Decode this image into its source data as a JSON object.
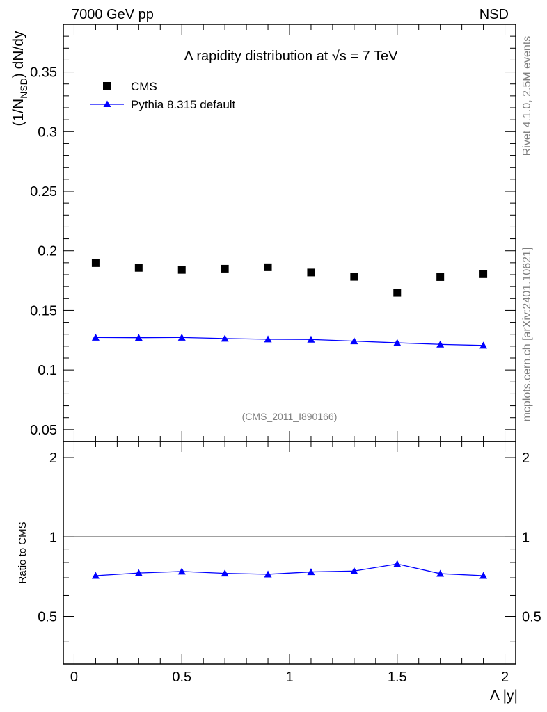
{
  "header": {
    "left": "7000 GeV pp",
    "right": "NSD"
  },
  "side_labels": {
    "rivet": "Rivet 4.1.0,  2.5M events",
    "mcplots": "mcplots.cern.ch [arXiv:2401.10621]"
  },
  "colors": {
    "data": "#000000",
    "mc": "#0000ff",
    "grey": "#7f7f7f"
  },
  "chart_data": [
    {
      "type": "scatter",
      "panel": "main",
      "title": "Λ rapidity distribution at √s = 7 TeV",
      "analysis_tag": "(CMS_2011_I890166)",
      "ylabel": "(1/N_NSD) dN/dy",
      "xlabel": "",
      "xlim": [
        -0.05,
        2.05
      ],
      "ylim": [
        0.04,
        0.39
      ],
      "ytick_values": [
        0.05,
        0.1,
        0.15,
        0.2,
        0.25,
        0.3,
        0.35
      ],
      "ytick_labels": [
        "0.05",
        "0.1",
        "0.15",
        "0.2",
        "0.25",
        "0.3",
        "0.35"
      ],
      "legend_position": "top-left",
      "series": [
        {
          "name": "CMS",
          "marker": "square",
          "color": "#000000",
          "x": [
            0.1,
            0.3,
            0.5,
            0.7,
            0.9,
            1.1,
            1.3,
            1.5,
            1.7,
            1.9
          ],
          "values": [
            0.1897,
            0.1857,
            0.184,
            0.185,
            0.1862,
            0.1818,
            0.1782,
            0.1648,
            0.178,
            0.1804
          ]
        },
        {
          "name": "Pythia 8.315 default",
          "marker": "triangle",
          "line": true,
          "color": "#0000ff",
          "x": [
            0.1,
            0.3,
            0.5,
            0.7,
            0.9,
            1.1,
            1.3,
            1.5,
            1.7,
            1.9
          ],
          "values": [
            0.1273,
            0.1271,
            0.1273,
            0.1264,
            0.1258,
            0.1256,
            0.1242,
            0.1228,
            0.1215,
            0.1206
          ]
        }
      ]
    },
    {
      "type": "line",
      "panel": "ratio",
      "ylabel": "Ratio to CMS",
      "xlabel": "Λ |y|",
      "xlim": [
        -0.05,
        2.05
      ],
      "ylim": [
        0.33,
        2.3
      ],
      "reference_line": 1,
      "ytick_values": [
        0.5,
        1,
        2
      ],
      "ytick_labels": [
        "0.5",
        "1",
        "2"
      ],
      "xtick_values": [
        0,
        0.5,
        1,
        1.5,
        2
      ],
      "xtick_labels": [
        "0",
        "0.5",
        "1",
        "1.5",
        "2"
      ],
      "series": [
        {
          "name": "Pythia 8.315 default",
          "marker": "triangle",
          "color": "#0000ff",
          "x": [
            0.1,
            0.3,
            0.5,
            0.7,
            0.9,
            1.1,
            1.3,
            1.5,
            1.7,
            1.9
          ],
          "values": [
            0.713,
            0.73,
            0.74,
            0.728,
            0.722,
            0.737,
            0.743,
            0.79,
            0.726,
            0.713
          ]
        }
      ]
    }
  ]
}
